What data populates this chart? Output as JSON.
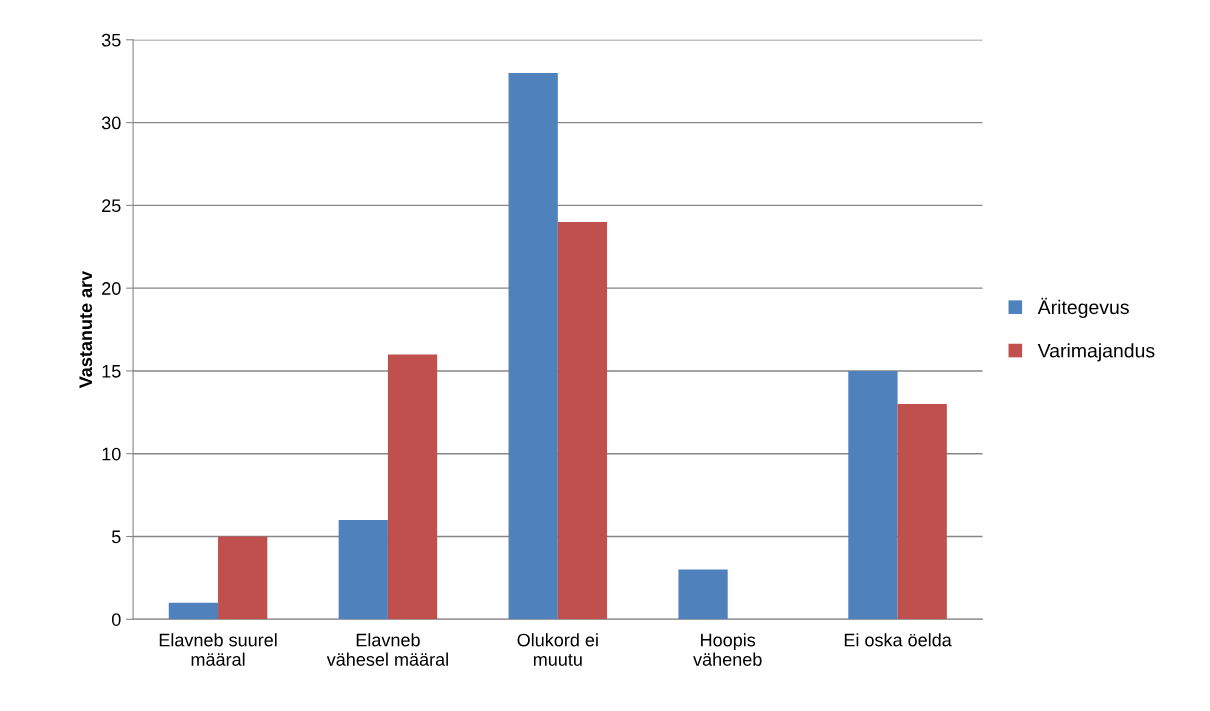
{
  "chart_data": {
    "type": "bar",
    "ylabel": "Vastanute arv",
    "categories": [
      "Elavneb suurel\nmääral",
      "Elavneb\nvähesel määral",
      "Olukord ei\nmuutu",
      "Hoopis\nväheneb",
      "Ei oska öelda"
    ],
    "series": [
      {
        "name": "Äritegevus",
        "color": "#4f81bd",
        "values": [
          1,
          6,
          33,
          3,
          15
        ]
      },
      {
        "name": "Varimajandus",
        "color": "#c0504d",
        "values": [
          5,
          16,
          24,
          0,
          13
        ]
      }
    ],
    "ylim": [
      0,
      35
    ],
    "yticks": [
      0,
      5,
      10,
      15,
      20,
      25,
      30,
      35
    ],
    "grid": "y",
    "legend": "right"
  }
}
